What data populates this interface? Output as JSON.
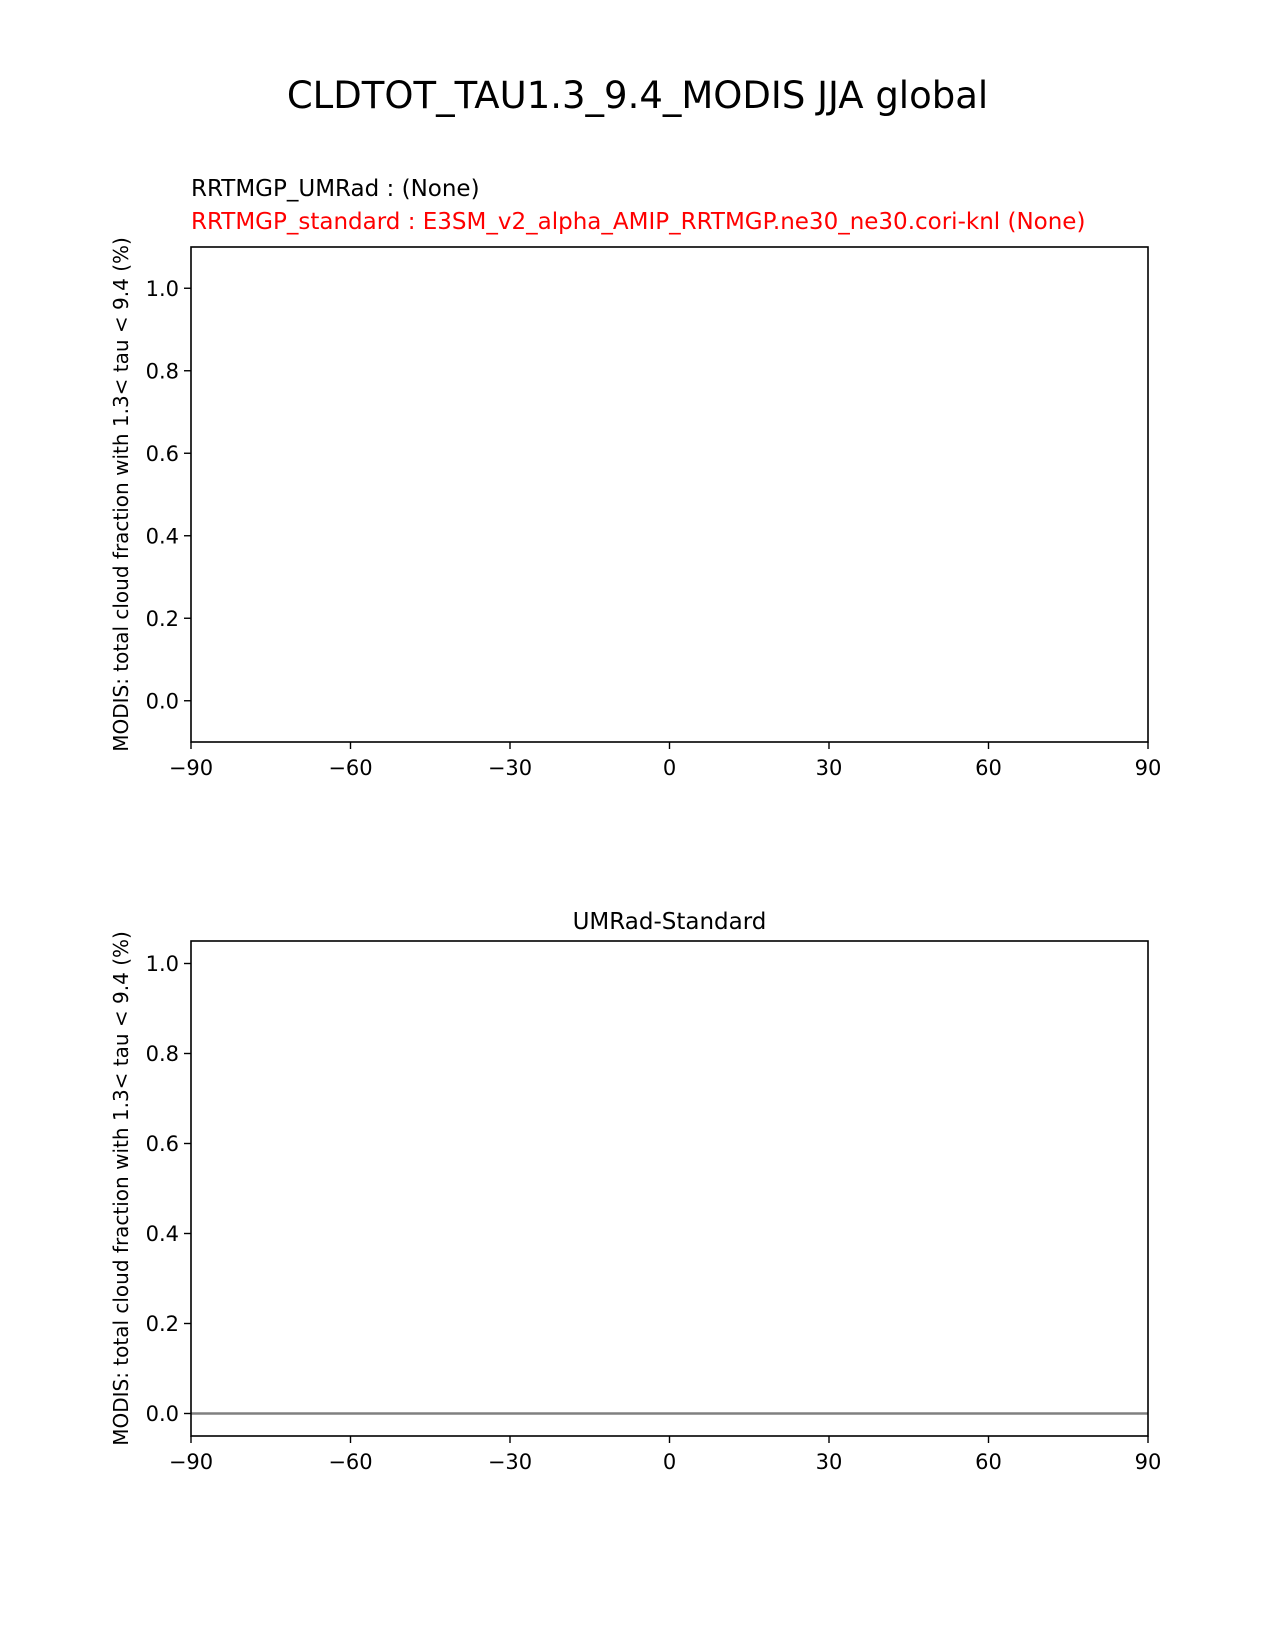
{
  "figure": {
    "title": "CLDTOT_TAU1.3_9.4_MODIS JJA global"
  },
  "chart_data": [
    {
      "type": "line",
      "title_lines": [
        {
          "text": "RRTMGP_UMRad :   (None)",
          "color": "#000000"
        },
        {
          "text": "RRTMGP_standard : E3SM_v2_alpha_AMIP_RRTMGP.ne30_ne30.cori-knl (None)",
          "color": "#ff0000"
        }
      ],
      "ylabel": "MODIS: total cloud fraction with 1.3< tau < 9.4 (%)",
      "xlabel": "",
      "xlim": [
        -90,
        90
      ],
      "ylim": [
        -0.1,
        1.1
      ],
      "xticks": [
        -90,
        -60,
        -30,
        0,
        30,
        60,
        90
      ],
      "xtick_labels": [
        "−90",
        "−60",
        "−30",
        "0",
        "30",
        "60",
        "90"
      ],
      "yticks": [
        0.0,
        0.2,
        0.4,
        0.6,
        0.8,
        1.0
      ],
      "ytick_labels": [
        "0.0",
        "0.2",
        "0.4",
        "0.6",
        "0.8",
        "1.0"
      ],
      "series": [],
      "grid": false
    },
    {
      "type": "line",
      "title": "UMRad-Standard",
      "ylabel": "MODIS: total cloud fraction with 1.3< tau < 9.4 (%)",
      "xlabel": "",
      "xlim": [
        -90,
        90
      ],
      "ylim": [
        -0.05,
        1.05
      ],
      "xticks": [
        -90,
        -60,
        -30,
        0,
        30,
        60,
        90
      ],
      "xtick_labels": [
        "−90",
        "−60",
        "−30",
        "0",
        "30",
        "60",
        "90"
      ],
      "yticks": [
        0.0,
        0.2,
        0.4,
        0.6,
        0.8,
        1.0
      ],
      "ytick_labels": [
        "0.0",
        "0.2",
        "0.4",
        "0.6",
        "0.8",
        "1.0"
      ],
      "reference_line": {
        "y": 0.0,
        "color": "#808080"
      },
      "series": [],
      "grid": false
    }
  ]
}
